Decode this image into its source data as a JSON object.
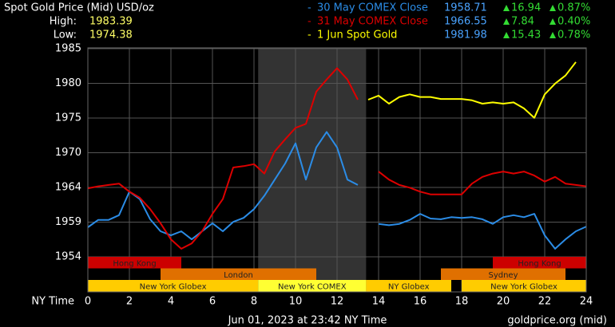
{
  "header": {
    "title": "Spot Gold Price (Mid) USD/oz",
    "high_label": "High:",
    "high": "1983.39",
    "low_label": "Low:",
    "low": "1974.38"
  },
  "chart_data": {
    "type": "line",
    "x_label": "NY Time",
    "x": [
      0,
      0.5,
      1,
      1.5,
      2,
      2.5,
      3,
      3.5,
      4,
      4.5,
      5,
      5.5,
      6,
      6.5,
      7,
      7.5,
      8,
      8.5,
      9,
      9.5,
      10,
      10.5,
      11,
      11.5,
      12,
      12.5,
      13,
      13.5,
      14,
      14.5,
      15,
      15.5,
      16,
      16.5,
      17,
      17.5,
      18,
      18.5,
      19,
      19.5,
      20,
      20.5,
      21,
      21.5,
      22,
      22.5,
      23,
      23.5,
      24
    ],
    "xlim": [
      0,
      24
    ],
    "xticks": [
      0,
      2,
      4,
      6,
      8,
      10,
      12,
      14,
      16,
      18,
      20,
      22,
      24
    ],
    "ylim": [
      1954,
      1985
    ],
    "yticks": [
      {
        "value": 1985,
        "label": "1985"
      },
      {
        "value": 1979.83,
        "label": "1980"
      },
      {
        "value": 1974.67,
        "label": "1975"
      },
      {
        "value": 1969.5,
        "label": "1970"
      },
      {
        "value": 1964.33,
        "label": "1964"
      },
      {
        "value": 1959.17,
        "label": "1959"
      },
      {
        "value": 1954,
        "label": "1954"
      }
    ],
    "grid": true,
    "highlight": [
      8.2,
      13.4
    ],
    "series": [
      {
        "name": "30 May COMEX Close",
        "color": "#2b8ce6",
        "last": "1958.71",
        "change": "16.94",
        "change_pct": "0.87%",
        "values": [
          1958.4,
          1959.5,
          1959.5,
          1960.2,
          1963.7,
          1962.6,
          1959.6,
          1957.8,
          1957.2,
          1957.8,
          1956.6,
          1957.8,
          1959.0,
          1957.8,
          1959.2,
          1959.8,
          1961.1,
          1963.1,
          1965.5,
          1967.9,
          1970.9,
          1965.5,
          1970.3,
          1972.6,
          1970.3,
          1965.5,
          1964.7,
          null,
          1958.9,
          1958.7,
          1958.9,
          1959.5,
          1960.4,
          1959.7,
          1959.6,
          1959.9,
          1959.8,
          1959.9,
          1959.6,
          1958.9,
          1959.9,
          1960.2,
          1959.9,
          1960.4,
          1957.2,
          1955.2,
          1956.6,
          1957.8,
          1958.5
        ]
      },
      {
        "name": "31 May COMEX Close",
        "color": "#dd0000",
        "last": "1966.55",
        "change": "7.84",
        "change_pct": "0.40%",
        "values": [
          1964.2,
          1964.5,
          1964.7,
          1964.9,
          1963.7,
          1962.8,
          1961.1,
          1959.0,
          1956.6,
          1955.2,
          1956.0,
          1957.8,
          1960.4,
          1962.6,
          1967.3,
          1967.5,
          1967.8,
          1966.4,
          1969.7,
          1971.5,
          1973.2,
          1973.8,
          1978.6,
          1980.4,
          1982.1,
          1980.4,
          1977.4,
          null,
          1966.7,
          1965.5,
          1964.7,
          1964.3,
          1963.7,
          1963.3,
          1963.3,
          1963.3,
          1963.3,
          1964.9,
          1965.9,
          1966.4,
          1966.7,
          1966.4,
          1966.7,
          1966.1,
          1965.2,
          1965.9,
          1964.9,
          1964.7,
          1964.5
        ]
      },
      {
        "name": "1 Jun Spot Gold",
        "color": "#ffff00",
        "last": "1981.98",
        "change": "15.43",
        "change_pct": "0.78%",
        "values": [
          null,
          null,
          null,
          null,
          null,
          null,
          null,
          null,
          null,
          null,
          null,
          null,
          null,
          null,
          null,
          null,
          null,
          null,
          null,
          null,
          null,
          null,
          null,
          null,
          null,
          null,
          null,
          1977.4,
          1978.0,
          1976.8,
          1977.8,
          1978.2,
          1977.8,
          1977.8,
          1977.5,
          1977.5,
          1977.5,
          1977.3,
          1976.8,
          1977.0,
          1976.8,
          1977.0,
          1976.1,
          1974.7,
          1978.2,
          1979.8,
          1981.0,
          1983.0,
          null
        ]
      }
    ],
    "session_rows": [
      [
        {
          "label": "Hong Kong",
          "color": "#cc0000",
          "start": 0,
          "end": 4.5
        },
        {
          "label": "Hong Kong",
          "color": "#cc0000",
          "start": 19.5,
          "end": 24
        }
      ],
      [
        {
          "label": "London",
          "color": "#e07000",
          "start": 3.5,
          "end": 11
        },
        {
          "label": "Sydney",
          "color": "#e07000",
          "start": 17,
          "end": 23
        }
      ],
      [
        {
          "label": "New York Globex",
          "color": "#ffcc00",
          "start": 0,
          "end": 8.2
        },
        {
          "label": "New York COMEX",
          "color": "#ffff33",
          "start": 8.2,
          "end": 13.4
        },
        {
          "label": "NY Globex",
          "color": "#ffcc00",
          "start": 13.4,
          "end": 17.5
        },
        {
          "label": "New York Globex",
          "color": "#ffcc00",
          "start": 18,
          "end": 24
        }
      ]
    ]
  },
  "footer": {
    "timestamp": "Jun 01, 2023 at 23:42 NY Time",
    "source": "goldprice.org (mid)"
  }
}
